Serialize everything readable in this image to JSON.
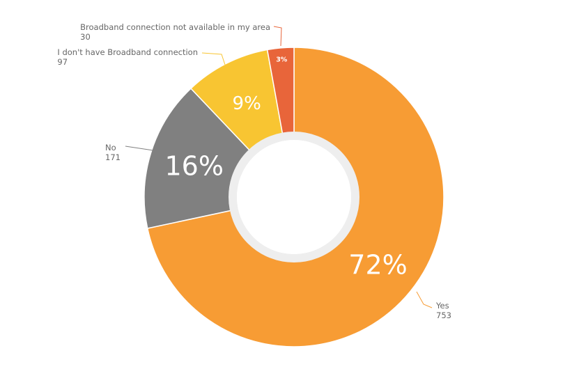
{
  "chart_data": {
    "type": "pie",
    "variant": "donut",
    "start_angle_deg": 0,
    "slices": [
      {
        "label": "Yes",
        "value": 753,
        "percent_label": "72%",
        "color": "#F79C34"
      },
      {
        "label": "No",
        "value": 171,
        "percent_label": "16%",
        "color": "#808080"
      },
      {
        "label": "I don't have Broadband connection",
        "value": 97,
        "percent_label": "9%",
        "color": "#F8C532"
      },
      {
        "label": "Broadband connection not available in my area",
        "value": 30,
        "percent_label": "3%",
        "color": "#E8653A"
      }
    ],
    "inner_ring_color": "#EEEEEE",
    "legend": "none"
  }
}
